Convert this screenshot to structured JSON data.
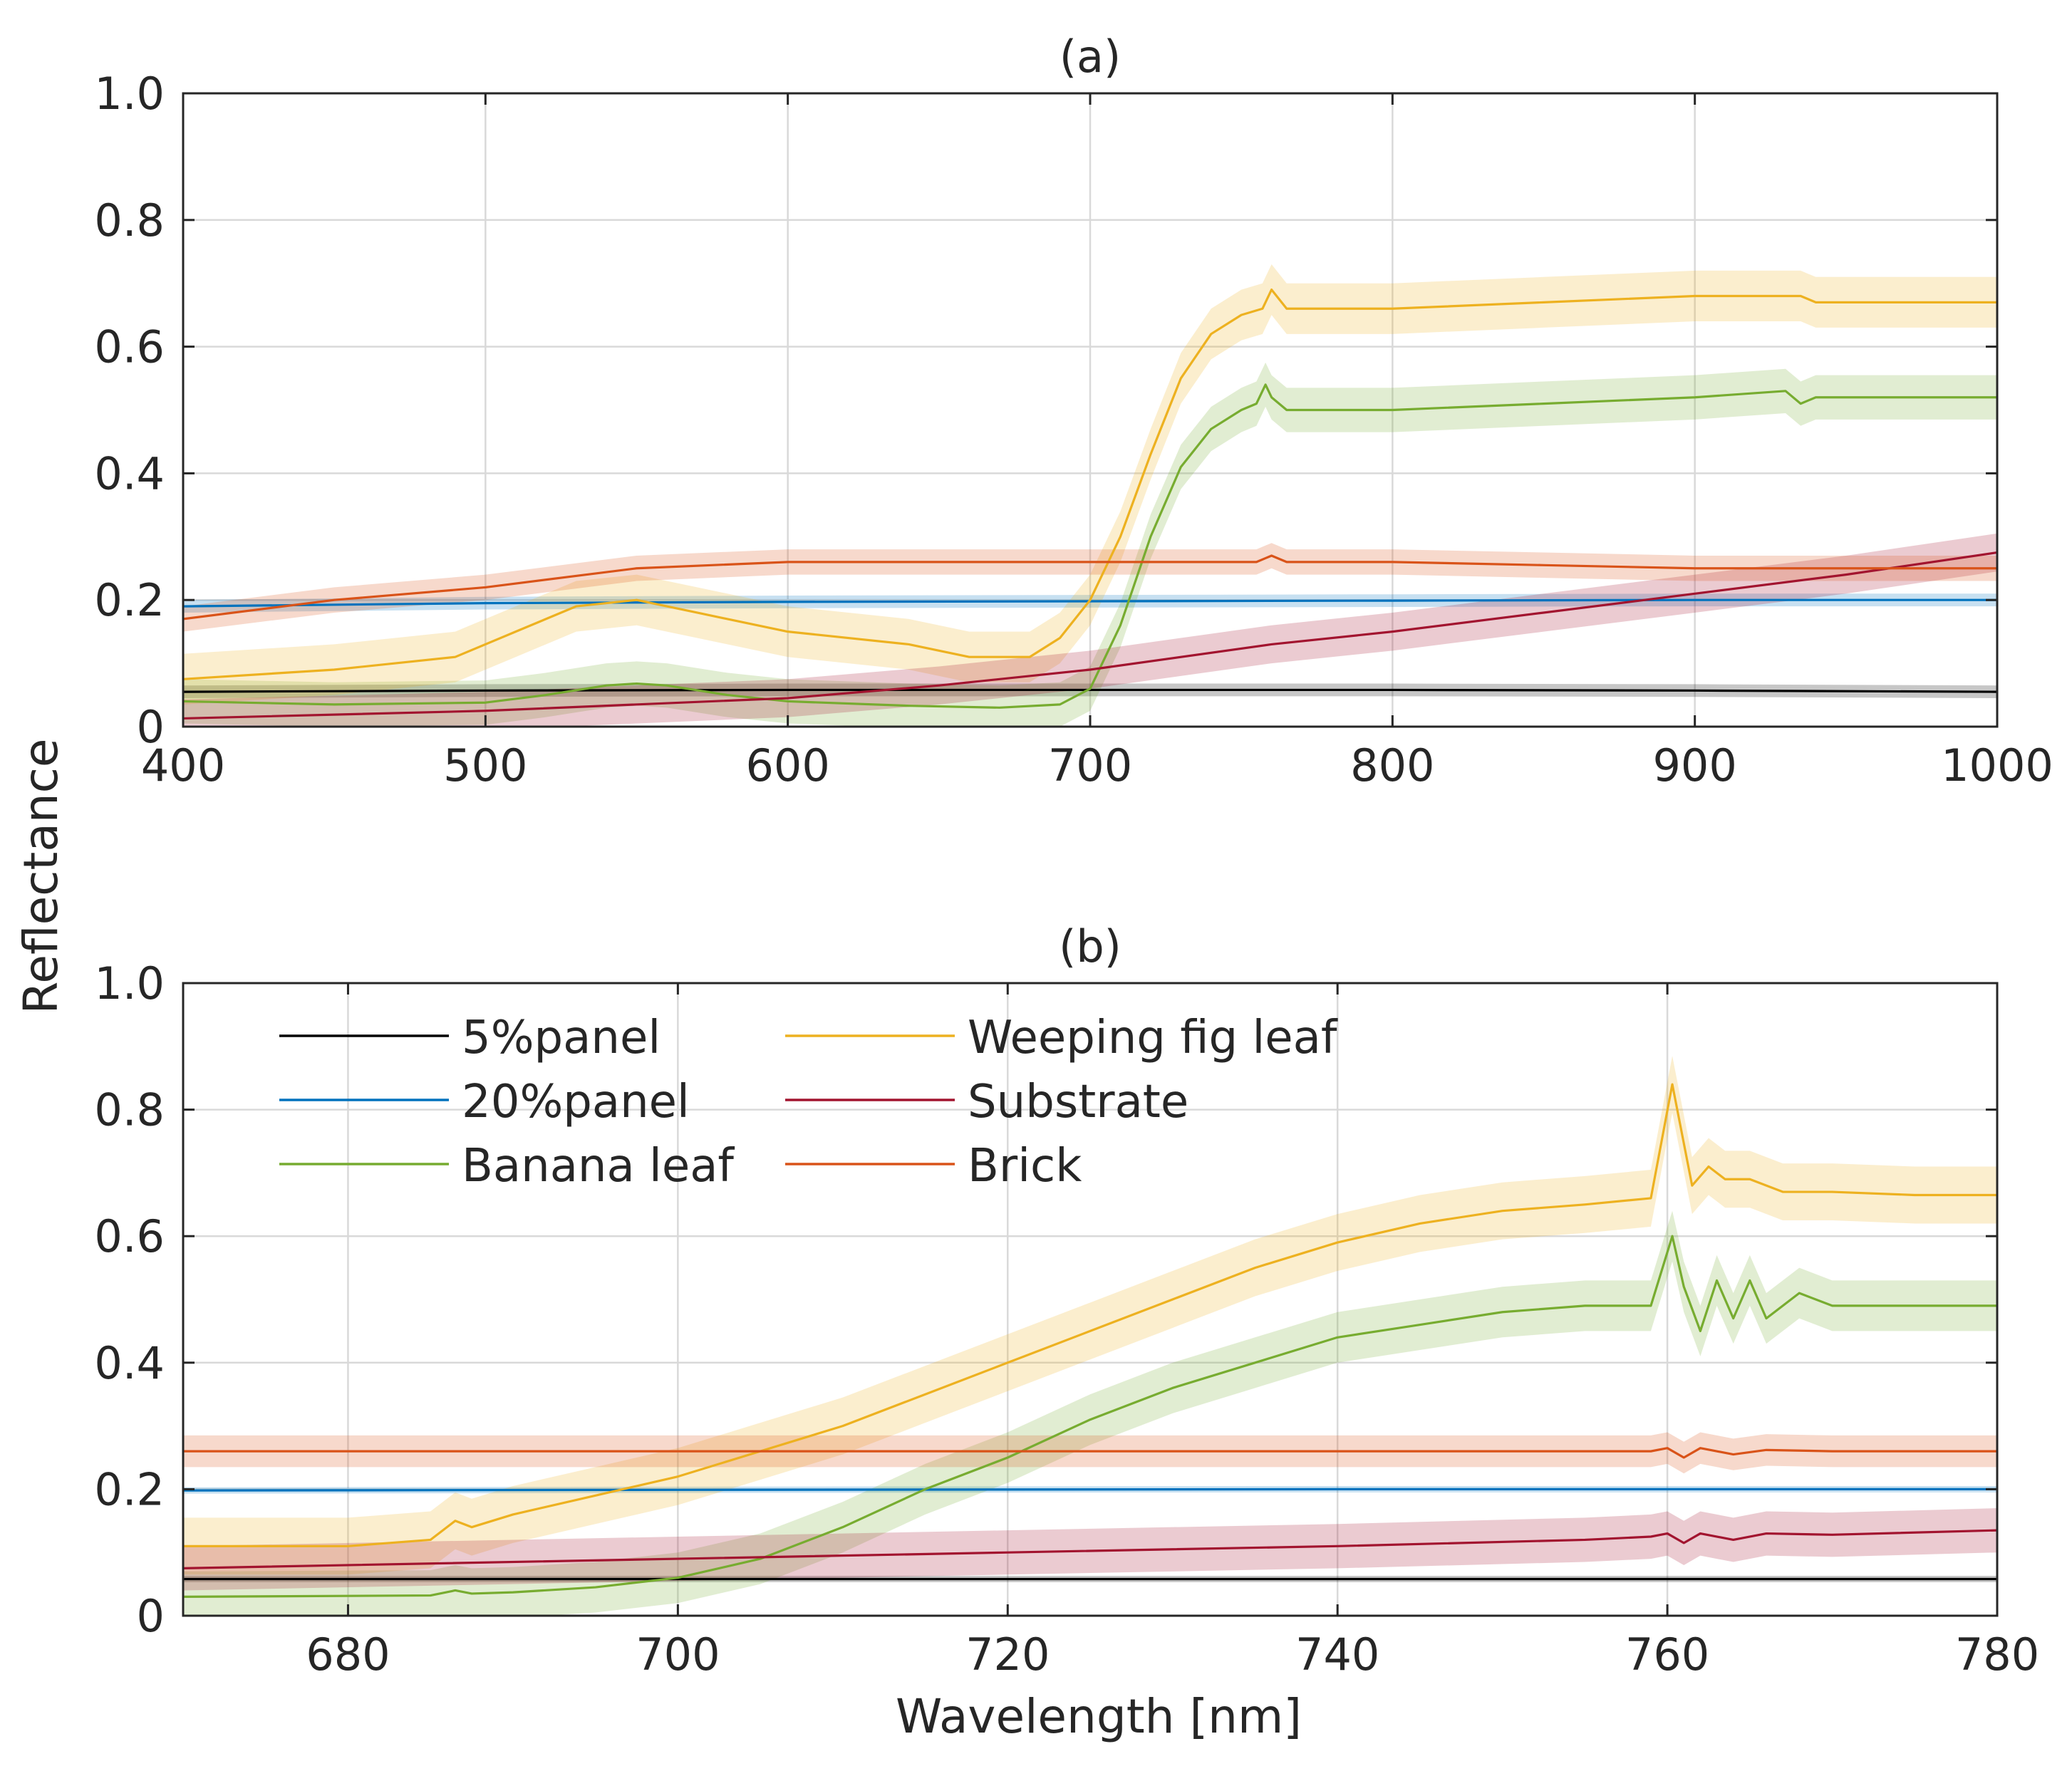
{
  "chart_data": [
    {
      "type": "line",
      "title": "(a)",
      "xlabel": "",
      "ylabel": "Reflectance",
      "xlim": [
        400,
        1000
      ],
      "ylim": [
        0,
        1
      ],
      "xticks": [
        "400",
        "500",
        "600",
        "700",
        "800",
        "900",
        "1000"
      ],
      "yticks": [
        "0",
        "0.2",
        "0.4",
        "0.6",
        "0.8",
        "1.0"
      ],
      "grid": true,
      "legend": "none",
      "series": [
        {
          "name": "5%panel",
          "color": "#000000",
          "band": 0.01,
          "x": [
            400,
            500,
            600,
            700,
            760,
            800,
            900,
            1000
          ],
          "y": [
            0.055,
            0.057,
            0.058,
            0.058,
            0.058,
            0.058,
            0.057,
            0.055
          ]
        },
        {
          "name": "20%panel",
          "color": "#0072BD",
          "band": 0.01,
          "x": [
            400,
            500,
            600,
            700,
            800,
            900,
            1000
          ],
          "y": [
            0.19,
            0.195,
            0.197,
            0.198,
            0.199,
            0.2,
            0.2
          ]
        },
        {
          "name": "Banana leaf",
          "color": "#77AC30",
          "band": 0.035,
          "x": [
            400,
            450,
            500,
            520,
            540,
            550,
            560,
            580,
            600,
            640,
            670,
            690,
            700,
            710,
            720,
            730,
            740,
            750,
            755,
            758,
            760,
            765,
            770,
            800,
            850,
            900,
            930,
            935,
            940,
            1000
          ],
          "y": [
            0.04,
            0.035,
            0.038,
            0.05,
            0.065,
            0.068,
            0.065,
            0.05,
            0.04,
            0.033,
            0.03,
            0.035,
            0.06,
            0.16,
            0.3,
            0.41,
            0.47,
            0.5,
            0.51,
            0.54,
            0.52,
            0.5,
            0.5,
            0.5,
            0.51,
            0.52,
            0.53,
            0.51,
            0.52,
            0.52
          ]
        },
        {
          "name": "Weeping fig leaf",
          "color": "#EDB120",
          "band": 0.04,
          "x": [
            400,
            450,
            490,
            510,
            530,
            550,
            570,
            600,
            640,
            660,
            680,
            690,
            700,
            710,
            720,
            730,
            740,
            750,
            757,
            760,
            765,
            800,
            850,
            900,
            935,
            940,
            1000
          ],
          "y": [
            0.075,
            0.09,
            0.11,
            0.15,
            0.19,
            0.2,
            0.18,
            0.15,
            0.13,
            0.11,
            0.11,
            0.14,
            0.2,
            0.3,
            0.43,
            0.55,
            0.62,
            0.65,
            0.66,
            0.69,
            0.66,
            0.66,
            0.67,
            0.68,
            0.68,
            0.67,
            0.67
          ]
        },
        {
          "name": "Substrate",
          "color": "#A2142F",
          "band": 0.03,
          "x": [
            400,
            500,
            600,
            650,
            700,
            760,
            800,
            850,
            900,
            950,
            1000
          ],
          "y": [
            0.013,
            0.025,
            0.045,
            0.065,
            0.09,
            0.13,
            0.15,
            0.18,
            0.21,
            0.24,
            0.275
          ]
        },
        {
          "name": "Brick",
          "color": "#D95319",
          "band": 0.02,
          "x": [
            400,
            450,
            500,
            550,
            600,
            650,
            700,
            755,
            760,
            765,
            800,
            850,
            900,
            950,
            1000
          ],
          "y": [
            0.17,
            0.2,
            0.22,
            0.25,
            0.26,
            0.26,
            0.26,
            0.26,
            0.27,
            0.26,
            0.26,
            0.255,
            0.25,
            0.25,
            0.25
          ]
        }
      ]
    },
    {
      "type": "line",
      "title": "(b)",
      "xlabel": "Wavelength [nm]",
      "ylabel": "Reflectance",
      "xlim": [
        670,
        780
      ],
      "ylim": [
        0,
        1
      ],
      "xticks": [
        "680",
        "700",
        "720",
        "740",
        "760",
        "780"
      ],
      "yticks": [
        "0",
        "0.2",
        "0.4",
        "0.6",
        "0.8",
        "1.0"
      ],
      "grid": true,
      "legend": "top-left",
      "series": [
        {
          "name": "5%panel",
          "color": "#000000",
          "band": 0.005,
          "x": [
            670,
            700,
            740,
            760,
            780
          ],
          "y": [
            0.058,
            0.058,
            0.058,
            0.058,
            0.058
          ]
        },
        {
          "name": "20%panel",
          "color": "#0072BD",
          "band": 0.005,
          "x": [
            670,
            700,
            740,
            760,
            780
          ],
          "y": [
            0.198,
            0.199,
            0.2,
            0.2,
            0.2
          ]
        },
        {
          "name": "Banana leaf",
          "color": "#77AC30",
          "band": 0.04,
          "x": [
            670,
            685,
            686.5,
            687.5,
            690,
            695,
            700,
            705,
            710,
            715,
            720,
            725,
            730,
            735,
            740,
            745,
            750,
            755,
            759,
            760.3,
            761,
            762,
            763,
            764,
            765,
            766,
            768,
            770,
            775,
            780
          ],
          "y": [
            0.03,
            0.032,
            0.04,
            0.035,
            0.037,
            0.045,
            0.06,
            0.09,
            0.14,
            0.2,
            0.25,
            0.31,
            0.36,
            0.4,
            0.44,
            0.46,
            0.48,
            0.49,
            0.49,
            0.6,
            0.52,
            0.45,
            0.53,
            0.47,
            0.53,
            0.47,
            0.51,
            0.49,
            0.49,
            0.49
          ]
        },
        {
          "name": "Weeping fig leaf",
          "color": "#EDB120",
          "band": 0.045,
          "x": [
            670,
            680,
            685,
            686.5,
            687.5,
            690,
            695,
            700,
            705,
            710,
            715,
            720,
            725,
            730,
            735,
            740,
            745,
            750,
            755,
            759,
            760.3,
            761.5,
            762.5,
            763.5,
            765,
            767,
            770,
            775,
            780
          ],
          "y": [
            0.11,
            0.11,
            0.12,
            0.15,
            0.14,
            0.16,
            0.19,
            0.22,
            0.26,
            0.3,
            0.35,
            0.4,
            0.45,
            0.5,
            0.55,
            0.59,
            0.62,
            0.64,
            0.65,
            0.66,
            0.84,
            0.68,
            0.71,
            0.69,
            0.69,
            0.67,
            0.67,
            0.665,
            0.665
          ]
        },
        {
          "name": "Substrate",
          "color": "#A2142F",
          "band": 0.035,
          "x": [
            670,
            700,
            720,
            740,
            755,
            759,
            760,
            761,
            762,
            764,
            766,
            770,
            780
          ],
          "y": [
            0.075,
            0.09,
            0.1,
            0.11,
            0.12,
            0.125,
            0.13,
            0.115,
            0.13,
            0.12,
            0.13,
            0.128,
            0.135
          ]
        },
        {
          "name": "Brick",
          "color": "#D95319",
          "band": 0.025,
          "x": [
            670,
            700,
            740,
            759,
            760,
            761,
            762,
            764,
            766,
            770,
            780
          ],
          "y": [
            0.26,
            0.26,
            0.26,
            0.26,
            0.265,
            0.25,
            0.265,
            0.255,
            0.262,
            0.26,
            0.26
          ]
        }
      ]
    }
  ]
}
